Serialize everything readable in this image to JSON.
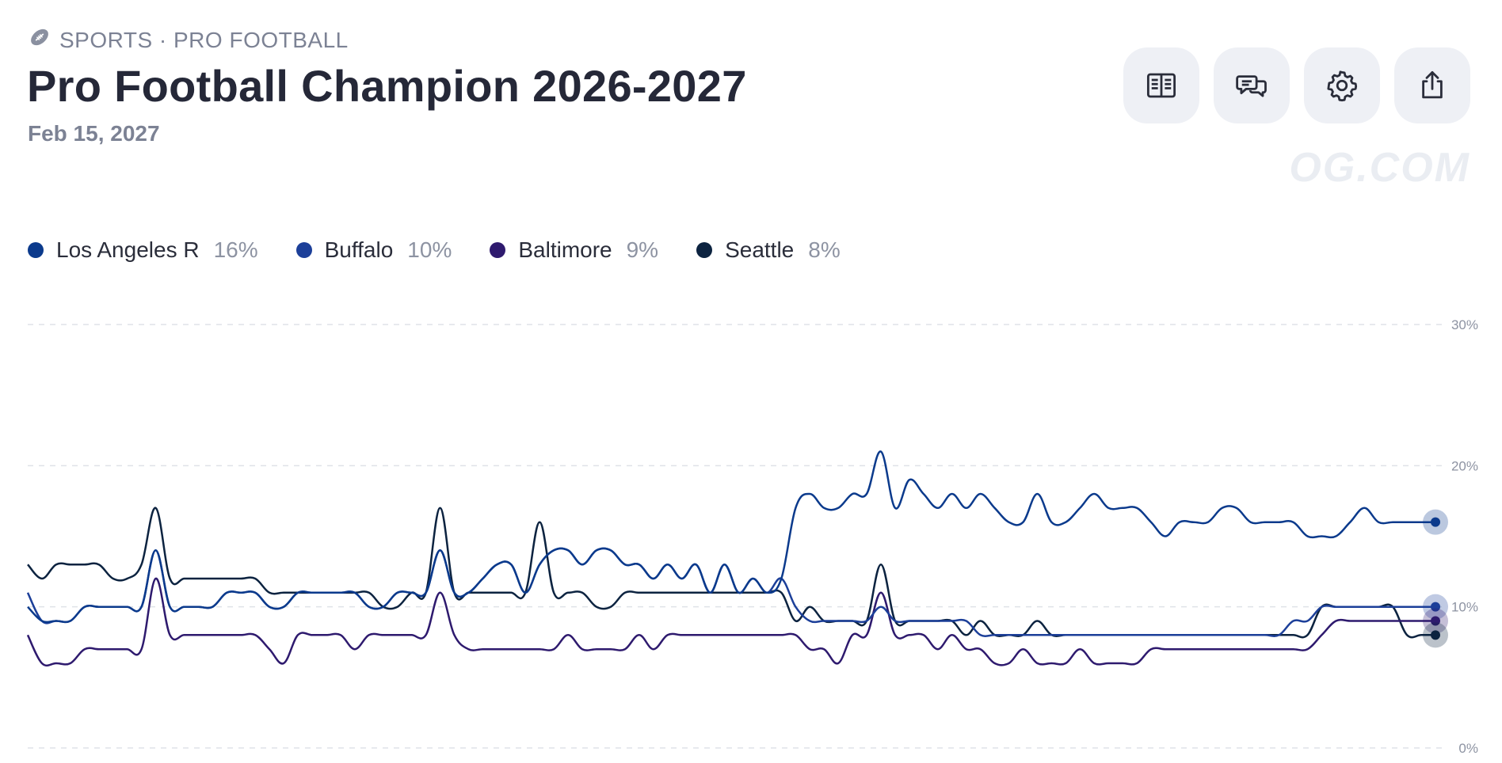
{
  "header": {
    "breadcrumb": "SPORTS · PRO FOOTBALL",
    "breadcrumb_icon": "football-icon",
    "title": "Pro Football Champion 2026-2027",
    "date": "Feb 15, 2027",
    "watermark": "OG.COM"
  },
  "toolbar": {
    "buttons": [
      {
        "name": "rules",
        "icon": "book-icon"
      },
      {
        "name": "comments",
        "icon": "chat-icon"
      },
      {
        "name": "settings",
        "icon": "gear-icon"
      },
      {
        "name": "share",
        "icon": "share-icon"
      }
    ]
  },
  "legend": [
    {
      "label": "Los Angeles R",
      "value": "16%",
      "color": "#0b3a8c"
    },
    {
      "label": "Buffalo",
      "value": "10%",
      "color": "#1c3f99"
    },
    {
      "label": "Baltimore",
      "value": "9%",
      "color": "#2e1a6e"
    },
    {
      "label": "Seattle",
      "value": "8%",
      "color": "#0c2340"
    }
  ],
  "chart_data": {
    "type": "line",
    "x_count": 100,
    "y_ticks": [
      {
        "value": 0,
        "label": "0%"
      },
      {
        "value": 10,
        "label": "10%"
      },
      {
        "value": 20,
        "label": "20%"
      },
      {
        "value": 30,
        "label": "30%"
      }
    ],
    "ylim": [
      0,
      30
    ],
    "grid": true,
    "legend_position": "top-left",
    "series": [
      {
        "name": "Los Angeles R",
        "color": "#0b3a8c",
        "values": [
          10,
          9,
          9,
          9,
          10,
          10,
          10,
          10,
          10,
          14,
          10,
          10,
          10,
          10,
          11,
          11,
          11,
          10,
          10,
          11,
          11,
          11,
          11,
          11,
          10,
          10,
          11,
          11,
          11,
          14,
          11,
          11,
          12,
          13,
          13,
          11,
          13,
          14,
          14,
          13,
          14,
          14,
          13,
          13,
          12,
          13,
          12,
          13,
          11,
          13,
          11,
          12,
          11,
          12,
          17,
          18,
          17,
          17,
          18,
          18,
          21,
          17,
          19,
          18,
          17,
          18,
          17,
          18,
          17,
          16,
          16,
          18,
          16,
          16,
          17,
          18,
          17,
          17,
          17,
          16,
          15,
          16,
          16,
          16,
          17,
          17,
          16,
          16,
          16,
          16,
          15,
          15,
          15,
          16,
          17,
          16,
          16,
          16,
          16,
          16
        ]
      },
      {
        "name": "Buffalo",
        "color": "#1c3f99",
        "values": [
          11,
          9,
          9,
          9,
          10,
          10,
          10,
          10,
          10,
          14,
          10,
          10,
          10,
          10,
          11,
          11,
          11,
          10,
          10,
          11,
          11,
          11,
          11,
          11,
          10,
          10,
          11,
          11,
          11,
          14,
          11,
          11,
          12,
          13,
          13,
          11,
          13,
          14,
          14,
          13,
          14,
          14,
          13,
          13,
          12,
          13,
          12,
          13,
          11,
          13,
          11,
          12,
          11,
          12,
          10,
          9,
          9,
          9,
          9,
          9,
          10,
          9,
          9,
          9,
          9,
          9,
          9,
          8,
          8,
          8,
          8,
          8,
          8,
          8,
          8,
          8,
          8,
          8,
          8,
          8,
          8,
          8,
          8,
          8,
          8,
          8,
          8,
          8,
          8,
          9,
          9,
          10,
          10,
          10,
          10,
          10,
          10,
          10,
          10,
          10
        ]
      },
      {
        "name": "Baltimore",
        "color": "#2e1a6e",
        "values": [
          8,
          6,
          6,
          6,
          7,
          7,
          7,
          7,
          7,
          12,
          8,
          8,
          8,
          8,
          8,
          8,
          8,
          7,
          6,
          8,
          8,
          8,
          8,
          7,
          8,
          8,
          8,
          8,
          8,
          11,
          8,
          7,
          7,
          7,
          7,
          7,
          7,
          7,
          8,
          7,
          7,
          7,
          7,
          8,
          7,
          8,
          8,
          8,
          8,
          8,
          8,
          8,
          8,
          8,
          8,
          7,
          7,
          6,
          8,
          8,
          11,
          8,
          8,
          8,
          7,
          8,
          7,
          7,
          6,
          6,
          7,
          6,
          6,
          6,
          7,
          6,
          6,
          6,
          6,
          7,
          7,
          7,
          7,
          7,
          7,
          7,
          7,
          7,
          7,
          7,
          7,
          8,
          9,
          9,
          9,
          9,
          9,
          9,
          9,
          9
        ]
      },
      {
        "name": "Seattle",
        "color": "#0c2340",
        "values": [
          13,
          12,
          13,
          13,
          13,
          13,
          12,
          12,
          13,
          17,
          12,
          12,
          12,
          12,
          12,
          12,
          12,
          11,
          11,
          11,
          11,
          11,
          11,
          11,
          11,
          10,
          10,
          11,
          11,
          17,
          11,
          11,
          11,
          11,
          11,
          11,
          16,
          11,
          11,
          11,
          10,
          10,
          11,
          11,
          11,
          11,
          11,
          11,
          11,
          11,
          11,
          11,
          11,
          11,
          9,
          10,
          9,
          9,
          9,
          9,
          13,
          9,
          9,
          9,
          9,
          9,
          8,
          9,
          8,
          8,
          8,
          9,
          8,
          8,
          8,
          8,
          8,
          8,
          8,
          8,
          8,
          8,
          8,
          8,
          8,
          8,
          8,
          8,
          8,
          8,
          8,
          10,
          10,
          10,
          10,
          10,
          10,
          8,
          8,
          8
        ]
      }
    ]
  }
}
